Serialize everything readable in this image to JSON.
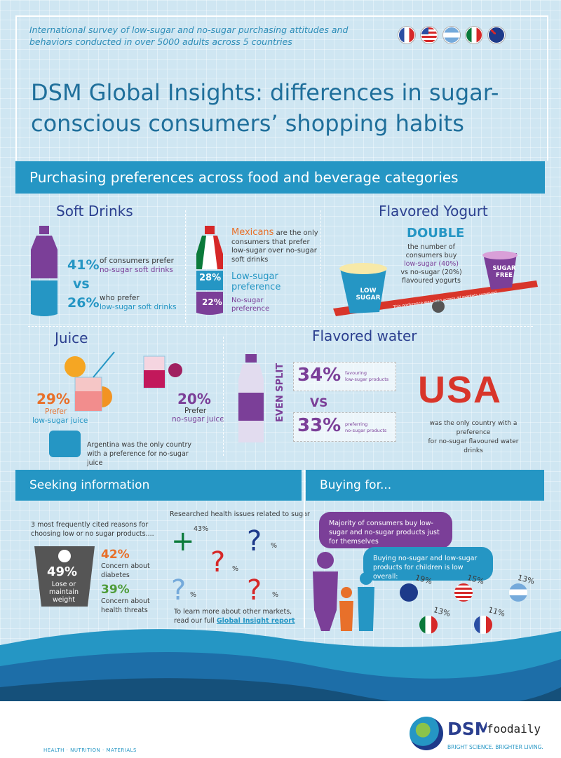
{
  "header": {
    "intro": "International survey of low-sugar and no-sugar purchasing attitudes and behaviors conducted in over 5000 adults across 5 countries",
    "title": "DSM Global Insights: differences in sugar-conscious consumers’ shopping habits"
  },
  "flags": [
    "france-flag",
    "usa-flag",
    "argentina-flag",
    "mexico-flag",
    "australia-flag"
  ],
  "section_purchasing": "Purchasing preferences across food and beverage categories",
  "soft_drinks": {
    "title": "Soft Drinks",
    "pct1": "41%",
    "text1a": "of consumers prefer",
    "text1b": "no-sugar soft drinks",
    "vs": "vs",
    "pct2": "26%",
    "text2a": "who prefer",
    "text2b": "low-sugar soft drinks"
  },
  "mexico": {
    "lead": "Mexicans",
    "text": "are the only consumers that prefer low-sugar over no-sugar soft drinks",
    "low_pct": "28%",
    "low_label": "Low-sugar preference",
    "no_pct": "22%",
    "no_label": "No-sugar preference"
  },
  "yogurt": {
    "title": "Flavored Yogurt",
    "double": "DOUBLE",
    "text1": "the number of consumers buy",
    "text2": "low-sugar (40%)",
    "text3": "vs no-sugar (20%)",
    "text4": "flavoured yogurts",
    "low_label": "LOW SUGAR",
    "free_label": "SUGAR FREE",
    "seesaw_note": "This preference was seen across all markets surveyed"
  },
  "juice": {
    "title": "Juice",
    "pct1": "29%",
    "label1a": "Prefer",
    "label1b": "low-sugar juice",
    "pct2": "20%",
    "label2a": "Prefer",
    "label2b": "no-sugar juice",
    "argentina": "Argentina was the only country with a preference for no-sugar juice"
  },
  "water": {
    "title": "Flavored water",
    "even": "EVEN SPLIT",
    "pct1": "34%",
    "label1a": "favouring",
    "label1b": "low-sugar products",
    "vs": "VS",
    "pct2": "33%",
    "label2a": "preferring",
    "label2b": "no-sugar products",
    "usa": "USA",
    "usa_text1": "was the only country with a preference",
    "usa_text2": "for no-sugar flavoured water drinks"
  },
  "seeking": {
    "title": "Seeking information",
    "reasons_intro": "3 most frequently cited reasons for choosing low or no sugar products....",
    "scale_pct": "49%",
    "scale_label": "Lose or maintain weight",
    "r2_pct": "42%",
    "r2_label": "Concern about diabetes",
    "r3_pct": "39%",
    "r3_label": "Concern about health threats",
    "researched": "Researched health issues related to sugar",
    "q_mx": "43%",
    "q_au": "%",
    "q_fr": "%",
    "q_ar": "%",
    "q_us": "%",
    "learn1": "To learn more about other markets,",
    "learn2": "read our full",
    "learn_link": "Global Insight report"
  },
  "buying": {
    "title": "Buying for...",
    "bubble1": "Majority of consumers buy low-sugar and no-sugar products just for themselves",
    "bubble2": "Buying no-sugar and low-sugar products for children is low overall:",
    "au": "19%",
    "us": "15%",
    "ar": "13%",
    "mx": "13%",
    "fr": "11%"
  },
  "footer": {
    "left": "HEALTH · NUTRITION · MATERIALS",
    "brand": "DSM",
    "tagline": "BRIGHT SCIENCE. BRIGHTER LIVING.",
    "watermark": "foodaily"
  }
}
